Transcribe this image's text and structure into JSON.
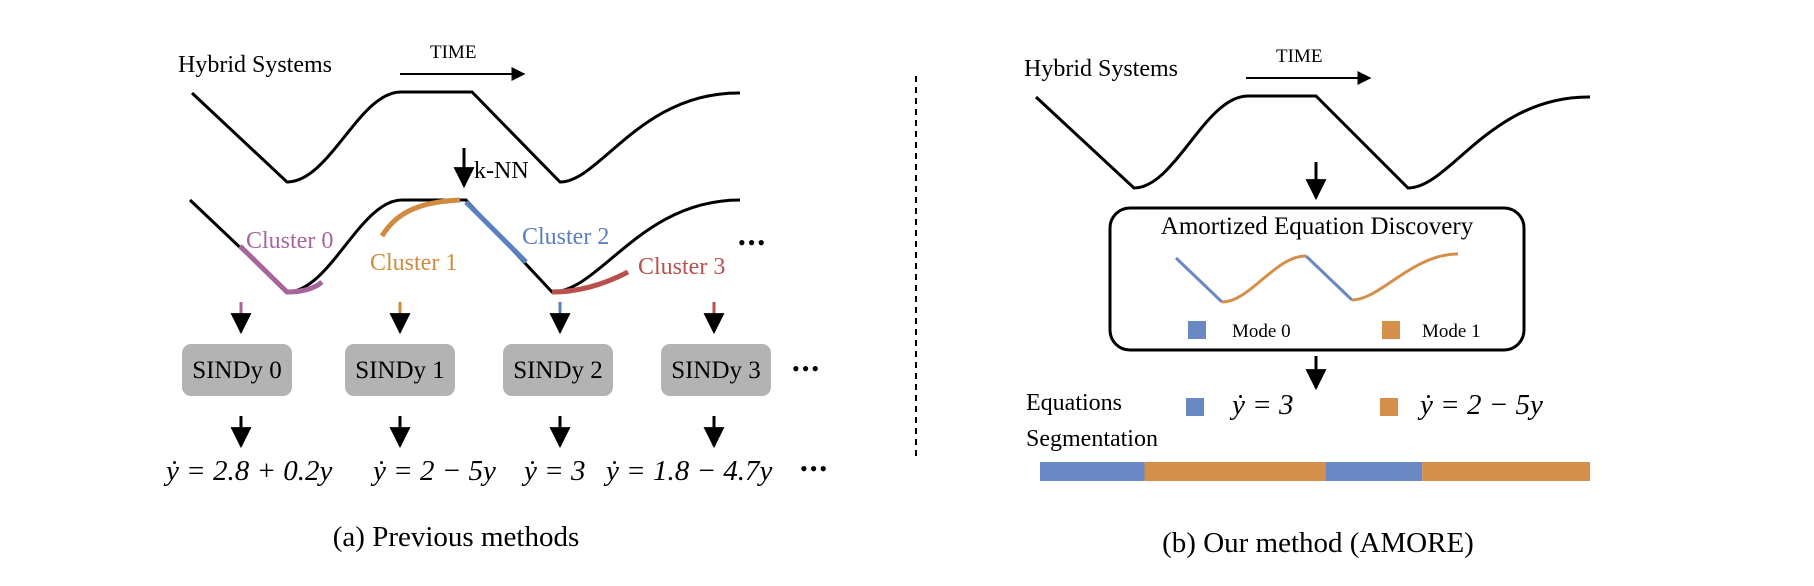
{
  "left_panel": {
    "title": "Hybrid Systems",
    "time_label": "TIME",
    "knn_label": "k-NN",
    "clusters": [
      {
        "label": "Cluster 0",
        "color": "#a8659c"
      },
      {
        "label": "Cluster 1",
        "color": "#d08b3e"
      },
      {
        "label": "Cluster 2",
        "color": "#5a7fbf"
      },
      {
        "label": "Cluster 3",
        "color": "#b9504d"
      }
    ],
    "ellipsis": "•••",
    "models": [
      "SINDy 0",
      "SINDy 1",
      "SINDy 2",
      "SINDy 3"
    ],
    "equations": [
      "ẏ = 2.8 + 0.2y",
      "ẏ = 2 − 5y",
      "ẏ = 3",
      "ẏ = 1.8 − 4.7y"
    ],
    "caption": "(a) Previous methods"
  },
  "right_panel": {
    "title": "Hybrid Systems",
    "time_label": "TIME",
    "box_title": "Amortized Equation Discovery",
    "modes": [
      {
        "label": "Mode 0",
        "color": "#6a89c4"
      },
      {
        "label": "Mode 1",
        "color": "#d4904a"
      }
    ],
    "equations_label": "Equations",
    "segmentation_label": "Segmentation",
    "equations": [
      "ẏ = 3",
      "ẏ = 2 − 5y"
    ],
    "segmentation": [
      {
        "mode": 0,
        "fraction": 0.19
      },
      {
        "mode": 1,
        "fraction": 0.33
      },
      {
        "mode": 0,
        "fraction": 0.175
      },
      {
        "mode": 1,
        "fraction": 0.305
      }
    ],
    "caption": "(b) Our method (AMORE)"
  }
}
